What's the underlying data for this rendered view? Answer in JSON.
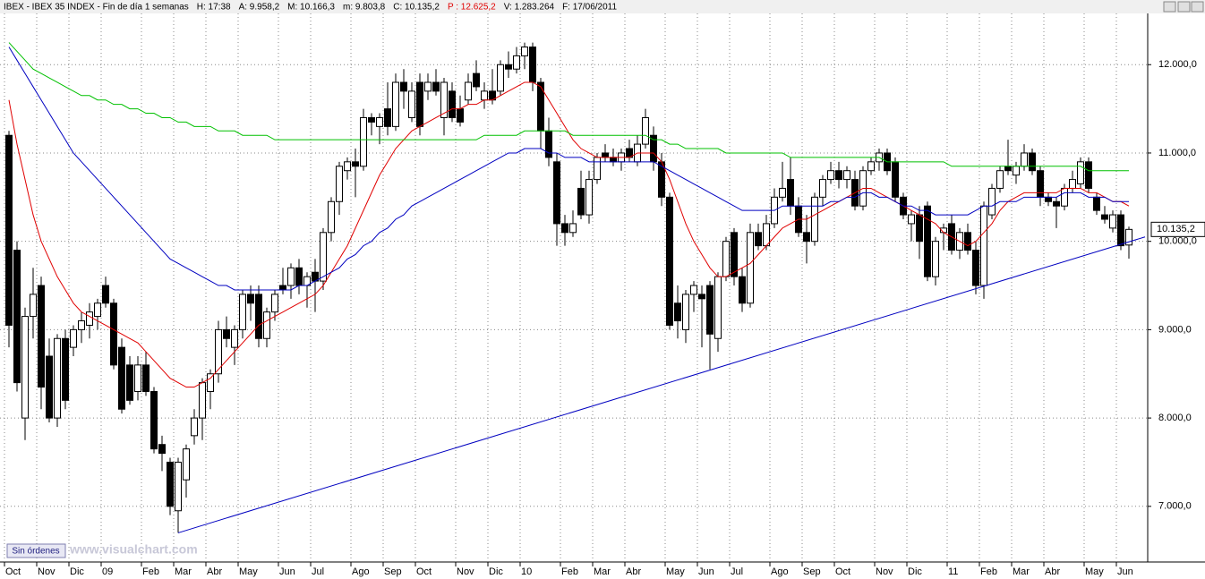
{
  "header": {
    "items": [
      {
        "text": "IBEX - IBEX 35 INDEX - Fin de día 1 semanas",
        "color": "#000000"
      },
      {
        "text": "H: 17:38",
        "color": "#000000"
      },
      {
        "text": "A: 9.958,2",
        "color": "#000000"
      },
      {
        "text": "M: 10.166,3",
        "color": "#000000"
      },
      {
        "text": "m: 9.803,8",
        "color": "#000000"
      },
      {
        "text": "C: 10.135,2",
        "color": "#000000"
      },
      {
        "text": "P : 12.625,2",
        "color": "#e00000"
      },
      {
        "text": "V: 1.283.264",
        "color": "#000000"
      },
      {
        "text": "F: 17/06/2011",
        "color": "#000000"
      }
    ]
  },
  "footer": {
    "button": "Sin órdenes",
    "watermark": "www.visualchart.com"
  },
  "chart_data": {
    "type": "candlestick",
    "grid": true,
    "ylim": [
      6370,
      12580
    ],
    "yticks": [
      {
        "value": 7000,
        "label": "7.000,0"
      },
      {
        "value": 8000,
        "label": "8.000,0"
      },
      {
        "value": 9000,
        "label": "9.000,0"
      },
      {
        "value": 10000,
        "label": "10.000,0"
      },
      {
        "value": 11000,
        "label": "11.000,0"
      },
      {
        "value": 12000,
        "label": "12.000,0"
      }
    ],
    "last_price": {
      "value": 10135.2,
      "label": "10.135,2"
    },
    "up_color": "#ffffff",
    "down_color": "#000000",
    "categories": [
      "Oct",
      null,
      null,
      null,
      "Nov",
      null,
      null,
      null,
      "Dic",
      null,
      null,
      null,
      "09",
      null,
      null,
      null,
      null,
      "Feb",
      null,
      null,
      null,
      "Mar",
      null,
      null,
      null,
      "Abr",
      null,
      null,
      null,
      "May",
      null,
      null,
      null,
      null,
      "Jun",
      null,
      null,
      null,
      "Jul",
      null,
      null,
      null,
      null,
      "Ago",
      null,
      null,
      null,
      "Sep",
      null,
      null,
      null,
      "Oct",
      null,
      null,
      null,
      null,
      "Nov",
      null,
      null,
      null,
      "Dic",
      null,
      null,
      null,
      "10",
      null,
      null,
      null,
      null,
      "Feb",
      null,
      null,
      null,
      "Mar",
      null,
      null,
      null,
      "Abr",
      null,
      null,
      null,
      null,
      "May",
      null,
      null,
      null,
      "Jun",
      null,
      null,
      null,
      "Jul",
      null,
      null,
      null,
      null,
      "Ago",
      null,
      null,
      null,
      "Sep",
      null,
      null,
      null,
      "Oct",
      null,
      null,
      null,
      null,
      "Nov",
      null,
      null,
      null,
      "Dic",
      null,
      null,
      null,
      null,
      "11",
      null,
      null,
      null,
      "Feb",
      null,
      null,
      null,
      "Mar",
      null,
      null,
      null,
      "Abr",
      null,
      null,
      null,
      null,
      "May",
      null,
      null,
      null,
      "Jun",
      null
    ],
    "open": [
      11200,
      9900,
      8000,
      9150,
      9500,
      8700,
      8000,
      8900,
      8800,
      9000,
      9050,
      9150,
      9500,
      9300,
      8800,
      8600,
      8300,
      8600,
      8300,
      7700,
      7500,
      6950,
      7300,
      7800,
      8000,
      8300,
      8500,
      9000,
      8800,
      9000,
      9400,
      9400,
      8900,
      9200,
      9500,
      9500,
      9700,
      9500,
      9650,
      9550,
      10100,
      10450,
      10800,
      10900,
      10850,
      11400,
      11300,
      11500,
      11300,
      11800,
      11400,
      11800,
      11700,
      11800,
      11400,
      11700,
      11500,
      11600,
      11900,
      11600,
      11700,
      11700,
      12000,
      11950,
      12100,
      12200,
      11800,
      11250,
      10900,
      10200,
      10100,
      10600,
      10300,
      10700,
      11000,
      10950,
      10900,
      11050,
      10900,
      11100,
      11200,
      10900,
      10500,
      9300,
      9000,
      9400,
      9400,
      9500,
      8900,
      9600,
      10100,
      9600,
      9300,
      10100,
      9950,
      10200,
      10500,
      10700,
      10400,
      10100,
      10000,
      10500,
      10700,
      10800,
      10700,
      10700,
      10400,
      10800,
      10900,
      11000,
      10900,
      10500,
      10200,
      10300,
      10400,
      9600,
      10100,
      10200,
      9900,
      10100,
      9900,
      9500,
      10300,
      10600,
      10850,
      10750,
      10850,
      11000,
      10800,
      10500,
      10450,
      10400,
      10600,
      10650,
      10900,
      10500,
      10300,
      10150,
      10300,
      9958.2
    ],
    "high": [
      11250,
      10000,
      9250,
      9700,
      9600,
      8900,
      8950,
      9000,
      9050,
      9200,
      9300,
      9350,
      9600,
      9350,
      8900,
      8700,
      8700,
      8750,
      8350,
      7800,
      7550,
      7550,
      7700,
      8100,
      8450,
      8550,
      9100,
      9150,
      9050,
      9450,
      9500,
      9500,
      9250,
      9450,
      9700,
      9750,
      9800,
      9650,
      9800,
      10150,
      10500,
      10900,
      10950,
      11050,
      11500,
      11450,
      11450,
      11800,
      11900,
      11950,
      11800,
      11900,
      11900,
      11950,
      11850,
      11800,
      11650,
      11900,
      12050,
      11800,
      11950,
      12050,
      12150,
      12200,
      12250,
      12250,
      11850,
      11400,
      11000,
      10300,
      10350,
      10800,
      10800,
      11000,
      11100,
      11050,
      11050,
      11150,
      11200,
      11500,
      11300,
      11000,
      10550,
      9500,
      9450,
      9550,
      9500,
      9550,
      9650,
      10050,
      10150,
      9700,
      10200,
      10200,
      10300,
      10600,
      10900,
      10950,
      10500,
      10300,
      10550,
      10750,
      10900,
      10900,
      10850,
      10800,
      10850,
      10950,
      11050,
      11050,
      10950,
      10550,
      10350,
      10400,
      10450,
      10050,
      10200,
      10300,
      10150,
      10200,
      10000,
      10450,
      10650,
      10850,
      11150,
      10900,
      11100,
      11050,
      10850,
      10550,
      10500,
      10650,
      10800,
      10950,
      10950,
      10550,
      10400,
      10350,
      10350,
      10166.3
    ],
    "low": [
      8800,
      8300,
      7750,
      8900,
      8100,
      7950,
      7900,
      8100,
      8700,
      8850,
      8900,
      9000,
      9250,
      8550,
      8050,
      8150,
      8200,
      8250,
      7600,
      7400,
      6900,
      6700,
      7100,
      7700,
      7750,
      8100,
      8400,
      8800,
      8600,
      8900,
      9100,
      8800,
      8800,
      9100,
      9400,
      9350,
      9400,
      9250,
      9200,
      9450,
      10000,
      10300,
      10700,
      10500,
      10800,
      11200,
      11100,
      11200,
      11250,
      11500,
      11350,
      11200,
      11600,
      11650,
      11200,
      11350,
      11300,
      11550,
      11700,
      11500,
      11550,
      11650,
      11850,
      11900,
      11950,
      11700,
      11050,
      10850,
      9950,
      9950,
      10050,
      10250,
      10200,
      10650,
      10900,
      10850,
      10800,
      10900,
      10850,
      11050,
      10800,
      10400,
      9000,
      8900,
      8850,
      9200,
      8800,
      8550,
      8750,
      9550,
      9500,
      9200,
      9250,
      9900,
      9900,
      10150,
      10450,
      10300,
      10050,
      9750,
      9950,
      10400,
      10650,
      10600,
      10600,
      10350,
      10350,
      10750,
      10800,
      10750,
      10450,
      10250,
      10000,
      9800,
      9550,
      9500,
      9900,
      9850,
      9800,
      9850,
      9400,
      9350,
      10250,
      10550,
      10750,
      10650,
      10800,
      10750,
      10400,
      10400,
      10150,
      10350,
      10550,
      10600,
      10550,
      10300,
      10200,
      10100,
      9900,
      9803.8
    ],
    "close": [
      9050,
      8400,
      9150,
      9400,
      8350,
      8000,
      8900,
      8200,
      9000,
      9100,
      9200,
      9300,
      9300,
      8600,
      8100,
      8200,
      8600,
      8300,
      7650,
      7600,
      7000,
      7500,
      7650,
      8000,
      8400,
      8500,
      9000,
      8900,
      9000,
      9400,
      9300,
      8900,
      9200,
      9400,
      9450,
      9700,
      9500,
      9600,
      9550,
      10100,
      10450,
      10850,
      10900,
      10850,
      11400,
      11350,
      11400,
      11300,
      11800,
      11700,
      11700,
      11300,
      11800,
      11700,
      11800,
      11400,
      11350,
      11800,
      11750,
      11700,
      11600,
      12000,
      11950,
      12100,
      12200,
      11800,
      11250,
      10950,
      10200,
      10100,
      10200,
      10300,
      10700,
      10950,
      10950,
      10900,
      11000,
      10950,
      11100,
      11400,
      10900,
      10500,
      9050,
      9100,
      9400,
      9500,
      9350,
      8950,
      9600,
      10000,
      9600,
      9300,
      10100,
      9950,
      10200,
      10500,
      10600,
      10400,
      10100,
      10000,
      10500,
      10700,
      10800,
      10700,
      10800,
      10400,
      10800,
      10900,
      11000,
      10800,
      10500,
      10300,
      10300,
      10000,
      9600,
      10000,
      10150,
      9900,
      10100,
      9900,
      9500,
      10400,
      10600,
      10800,
      10800,
      10850,
      11000,
      10800,
      10500,
      10450,
      10400,
      10600,
      10700,
      10900,
      10600,
      10350,
      10250,
      10300,
      9950,
      10135.2
    ],
    "series": [
      {
        "color": "#e00000",
        "values": [
          11600,
          11100,
          10700,
          10300,
          10000,
          9800,
          9600,
          9450,
          9300,
          9200,
          9150,
          9100,
          9050,
          9000,
          8950,
          8900,
          8850,
          8750,
          8650,
          8550,
          8450,
          8400,
          8350,
          8350,
          8400,
          8450,
          8550,
          8650,
          8750,
          8850,
          8950,
          9050,
          9100,
          9150,
          9200,
          9250,
          9300,
          9350,
          9400,
          9500,
          9650,
          9800,
          9950,
          10150,
          10350,
          10550,
          10750,
          10900,
          11050,
          11150,
          11250,
          11300,
          11350,
          11400,
          11450,
          11500,
          11500,
          11550,
          11550,
          11600,
          11600,
          11650,
          11700,
          11750,
          11800,
          11800,
          11750,
          11600,
          11450,
          11300,
          11150,
          11050,
          11000,
          10950,
          10950,
          10950,
          10950,
          10950,
          11000,
          11000,
          11000,
          10900,
          10700,
          10450,
          10200,
          10000,
          9850,
          9700,
          9600,
          9600,
          9650,
          9700,
          9750,
          9850,
          9950,
          10050,
          10150,
          10200,
          10250,
          10250,
          10300,
          10350,
          10400,
          10450,
          10500,
          10550,
          10600,
          10600,
          10550,
          10500,
          10450,
          10400,
          10350,
          10300,
          10250,
          10200,
          10100,
          10050,
          10000,
          9950,
          10000,
          10100,
          10200,
          10350,
          10450,
          10500,
          10550,
          10550,
          10550,
          10550,
          10550,
          10600,
          10600,
          10600,
          10550,
          10550,
          10500,
          10450,
          10450,
          10400
        ]
      },
      {
        "color": "#0000c0",
        "values": [
          12200,
          12050,
          11900,
          11750,
          11600,
          11450,
          11300,
          11150,
          11000,
          10900,
          10800,
          10700,
          10600,
          10500,
          10400,
          10300,
          10200,
          10100,
          10000,
          9900,
          9800,
          9750,
          9700,
          9650,
          9600,
          9550,
          9500,
          9500,
          9450,
          9450,
          9450,
          9450,
          9450,
          9450,
          9450,
          9450,
          9500,
          9500,
          9550,
          9600,
          9650,
          9700,
          9800,
          9850,
          9950,
          10000,
          10100,
          10150,
          10250,
          10300,
          10400,
          10450,
          10500,
          10550,
          10600,
          10650,
          10700,
          10750,
          10800,
          10850,
          10900,
          10950,
          11000,
          11000,
          11050,
          11050,
          11050,
          11000,
          11000,
          10950,
          10950,
          10950,
          10900,
          10900,
          10900,
          10900,
          10900,
          10900,
          10900,
          10900,
          10900,
          10850,
          10800,
          10750,
          10700,
          10650,
          10600,
          10550,
          10500,
          10450,
          10400,
          10350,
          10350,
          10350,
          10350,
          10350,
          10400,
          10400,
          10400,
          10400,
          10400,
          10400,
          10450,
          10450,
          10500,
          10500,
          10550,
          10550,
          10500,
          10500,
          10450,
          10400,
          10400,
          10350,
          10350,
          10300,
          10300,
          10300,
          10300,
          10300,
          10350,
          10400,
          10400,
          10450,
          10450,
          10450,
          10500,
          10500,
          10500,
          10500,
          10500,
          10550,
          10550,
          10550,
          10500,
          10500,
          10500,
          10450,
          10450,
          10450
        ]
      },
      {
        "color": "#00c000",
        "values": [
          12250,
          12150,
          12050,
          11950,
          11900,
          11850,
          11800,
          11750,
          11700,
          11650,
          11650,
          11600,
          11600,
          11550,
          11550,
          11500,
          11500,
          11450,
          11450,
          11400,
          11400,
          11350,
          11350,
          11300,
          11300,
          11300,
          11250,
          11250,
          11250,
          11200,
          11200,
          11200,
          11200,
          11150,
          11150,
          11150,
          11150,
          11150,
          11150,
          11150,
          11150,
          11150,
          11150,
          11150,
          11150,
          11150,
          11150,
          11150,
          11150,
          11150,
          11150,
          11150,
          11150,
          11150,
          11150,
          11150,
          11150,
          11150,
          11150,
          11200,
          11200,
          11200,
          11200,
          11200,
          11250,
          11250,
          11250,
          11250,
          11250,
          11250,
          11200,
          11200,
          11200,
          11200,
          11200,
          11200,
          11200,
          11200,
          11200,
          11200,
          11150,
          11150,
          11100,
          11100,
          11050,
          11050,
          11050,
          11050,
          11050,
          11000,
          11000,
          11000,
          11000,
          11000,
          11000,
          11000,
          11000,
          10950,
          10950,
          10950,
          10950,
          10950,
          10950,
          10950,
          10950,
          10950,
          10950,
          10950,
          10950,
          10900,
          10900,
          10900,
          10900,
          10900,
          10900,
          10900,
          10900,
          10850,
          10850,
          10850,
          10850,
          10850,
          10850,
          10850,
          10850,
          10850,
          10850,
          10850,
          10850,
          10850,
          10850,
          10850,
          10850,
          10850,
          10800,
          10800,
          10800,
          10800,
          10800,
          10800
        ]
      }
    ],
    "trend_line": {
      "color": "#0000c0",
      "x": [
        21,
        141
      ],
      "values": [
        6700,
        10050
      ]
    }
  }
}
